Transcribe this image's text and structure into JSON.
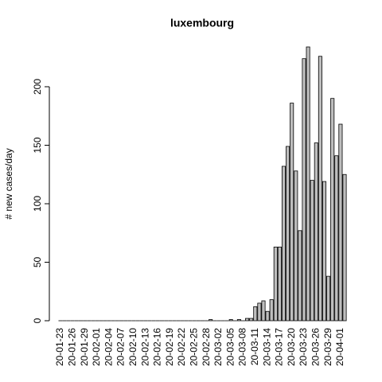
{
  "chart_data": {
    "type": "bar",
    "title": "luxembourg",
    "y_label": "# new cases/day",
    "categories": [
      "20-01-23",
      null,
      null,
      "20-01-26",
      null,
      null,
      "20-01-29",
      null,
      null,
      "20-02-01",
      null,
      null,
      "20-02-04",
      null,
      null,
      "20-02-07",
      null,
      null,
      "20-02-10",
      null,
      null,
      "20-02-13",
      null,
      null,
      "20-02-16",
      null,
      null,
      "20-02-19",
      null,
      null,
      "20-02-22",
      null,
      null,
      "20-02-25",
      null,
      null,
      "20-02-28",
      null,
      null,
      "20-03-02",
      null,
      null,
      "20-03-05",
      null,
      null,
      "20-03-08",
      null,
      null,
      "20-03-11",
      null,
      null,
      "20-03-14",
      null,
      null,
      "20-03-17",
      null,
      null,
      "20-03-20",
      null,
      null,
      "20-03-23",
      null,
      null,
      "20-03-26",
      null,
      null,
      "20-03-29",
      null,
      null,
      "20-04-01",
      null
    ],
    "values": [
      0,
      0,
      0,
      0,
      0,
      0,
      0,
      0,
      0,
      0,
      0,
      0,
      0,
      0,
      0,
      0,
      0,
      0,
      0,
      0,
      0,
      0,
      0,
      0,
      0,
      0,
      0,
      0,
      0,
      0,
      0,
      0,
      0,
      0,
      0,
      0,
      0,
      1,
      0,
      0,
      0,
      0,
      1,
      0,
      1,
      0,
      2,
      2,
      12,
      15,
      17,
      8,
      18,
      63,
      63,
      132,
      149,
      186,
      128,
      77,
      224,
      234,
      120,
      152,
      226,
      119,
      38,
      190,
      141,
      168,
      125
    ],
    "color": "#bebebe",
    "ylim": [
      0,
      234
    ],
    "yticks": [
      0,
      50,
      100,
      150,
      200
    ]
  }
}
